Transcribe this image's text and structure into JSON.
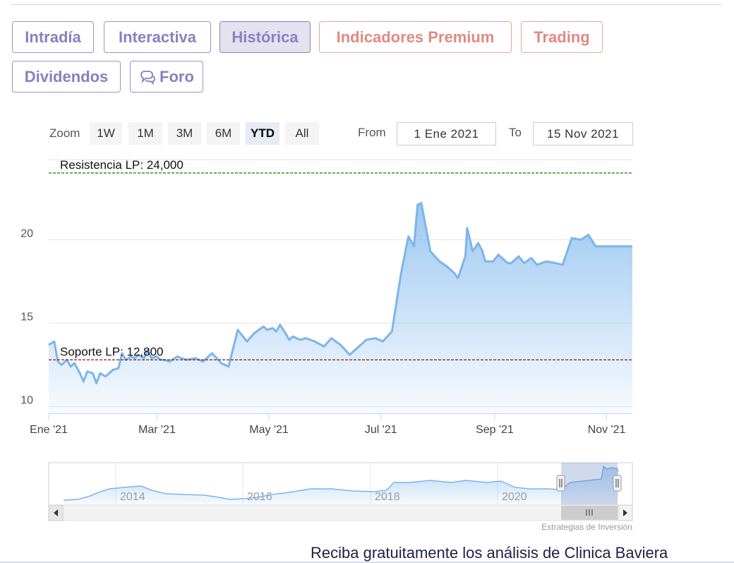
{
  "tabs": [
    {
      "label": "Intradía",
      "variant": "normal"
    },
    {
      "label": "Interactiva",
      "variant": "normal"
    },
    {
      "label": "Histórica",
      "variant": "active"
    },
    {
      "label": "Indicadores Premium",
      "variant": "premium"
    },
    {
      "label": "Trading",
      "variant": "premium"
    },
    {
      "label": "Dividendos",
      "variant": "normal"
    },
    {
      "label": "Foro",
      "variant": "normal",
      "icon": "chat-bubbles-icon"
    }
  ],
  "range_selector": {
    "zoom_label": "Zoom",
    "buttons": [
      "1W",
      "1M",
      "3M",
      "6M",
      "YTD",
      "All"
    ],
    "selected": "YTD",
    "from_label": "From",
    "from_value": "1 Ene 2021",
    "to_label": "To",
    "to_value": "15 Nov 2021"
  },
  "chart_data": {
    "type": "area",
    "title": "",
    "xlabel": "",
    "ylabel": "",
    "x_tick_labels": [
      "Ene '21",
      "Mar '21",
      "May '21",
      "Jul '21",
      "Sep '21",
      "Nov '21"
    ],
    "x_tick_dates": [
      "2021-01-01",
      "2021-03-01",
      "2021-05-01",
      "2021-07-01",
      "2021-09-01",
      "2021-11-01"
    ],
    "y_ticks": [
      10,
      15,
      20
    ],
    "ylim": [
      9.6,
      24.8
    ],
    "xlim": [
      "2021-01-01",
      "2021-11-15"
    ],
    "grid": "horizontal",
    "line_color": "#7cb5ec",
    "series": [
      {
        "x": [
          "2021-01-01",
          "2021-01-04",
          "2021-01-06",
          "2021-01-08",
          "2021-01-11",
          "2021-01-13",
          "2021-01-15",
          "2021-01-18",
          "2021-01-20",
          "2021-01-22",
          "2021-01-25",
          "2021-01-27",
          "2021-01-29",
          "2021-02-01",
          "2021-02-03",
          "2021-02-05",
          "2021-02-08",
          "2021-02-10",
          "2021-02-12",
          "2021-02-15",
          "2021-02-17",
          "2021-02-19",
          "2021-02-22",
          "2021-02-24",
          "2021-02-26",
          "2021-03-01",
          "2021-03-03",
          "2021-03-05",
          "2021-03-08",
          "2021-03-12",
          "2021-03-17",
          "2021-03-22",
          "2021-03-26",
          "2021-03-31",
          "2021-04-05",
          "2021-04-09",
          "2021-04-14",
          "2021-04-19",
          "2021-04-23",
          "2021-04-28",
          "2021-04-30",
          "2021-05-03",
          "2021-05-05",
          "2021-05-07",
          "2021-05-10",
          "2021-05-12",
          "2021-05-14",
          "2021-05-18",
          "2021-05-21",
          "2021-05-26",
          "2021-05-31",
          "2021-06-04",
          "2021-06-09",
          "2021-06-14",
          "2021-06-18",
          "2021-06-23",
          "2021-06-28",
          "2021-07-02",
          "2021-07-07",
          "2021-07-12",
          "2021-07-16",
          "2021-07-19",
          "2021-07-21",
          "2021-07-23",
          "2021-07-28",
          "2021-08-02",
          "2021-08-06",
          "2021-08-10",
          "2021-08-12",
          "2021-08-16",
          "2021-08-17",
          "2021-08-19",
          "2021-08-20",
          "2021-08-23",
          "2021-08-25",
          "2021-08-27",
          "2021-08-31",
          "2021-09-03",
          "2021-09-08",
          "2021-09-10",
          "2021-09-14",
          "2021-09-17",
          "2021-09-21",
          "2021-09-24",
          "2021-09-29",
          "2021-10-04",
          "2021-10-08",
          "2021-10-13",
          "2021-10-18",
          "2021-10-22",
          "2021-10-26",
          "2021-10-29",
          "2021-11-03",
          "2021-11-05",
          "2021-11-09",
          "2021-11-11",
          "2021-11-15"
        ],
        "y": [
          13.7,
          13.9,
          12.7,
          12.5,
          12.8,
          12.4,
          12.6,
          12.0,
          11.5,
          12.1,
          12.0,
          11.4,
          12.0,
          11.8,
          12.0,
          12.2,
          12.3,
          13.2,
          12.8,
          13.0,
          12.9,
          13.1,
          12.9,
          13.4,
          12.9,
          13.0,
          12.8,
          12.8,
          12.7,
          13.0,
          12.8,
          12.9,
          12.7,
          13.2,
          12.6,
          12.4,
          14.6,
          13.9,
          14.4,
          14.8,
          14.6,
          14.7,
          14.5,
          14.9,
          14.4,
          14.0,
          14.2,
          14.0,
          14.1,
          13.9,
          13.6,
          14.1,
          13.7,
          13.1,
          13.5,
          14.0,
          14.1,
          13.9,
          14.5,
          18.0,
          20.2,
          19.6,
          22.1,
          22.2,
          19.3,
          18.7,
          18.4,
          18.0,
          17.7,
          19.0,
          20.7,
          19.8,
          19.3,
          19.8,
          19.4,
          18.7,
          18.7,
          19.1,
          18.6,
          18.6,
          19.0,
          18.6,
          18.9,
          18.5,
          18.7,
          18.6,
          18.5,
          20.1,
          20.0,
          20.3,
          19.6,
          19.6,
          19.6,
          19.6,
          19.6,
          19.6,
          19.6
        ]
      }
    ],
    "plot_lines": [
      {
        "label": "Resistencia LP: 24,000",
        "value": 24.0,
        "color": "#008000",
        "style": "dashed"
      },
      {
        "label": "Soporte LP: 12,800",
        "value": 12.8,
        "color": "#8b0000",
        "style": "dashed"
      }
    ],
    "navigator": {
      "x_tick_labels": [
        "2014",
        "2016",
        "2018",
        "2020"
      ],
      "selected_range": [
        "2021-01-01",
        "2021-11-15"
      ]
    },
    "credits": "Estrategias de Inversión"
  },
  "footer": {
    "text": "Reciba gratuitamente los análisis de Clinica Baviera"
  }
}
